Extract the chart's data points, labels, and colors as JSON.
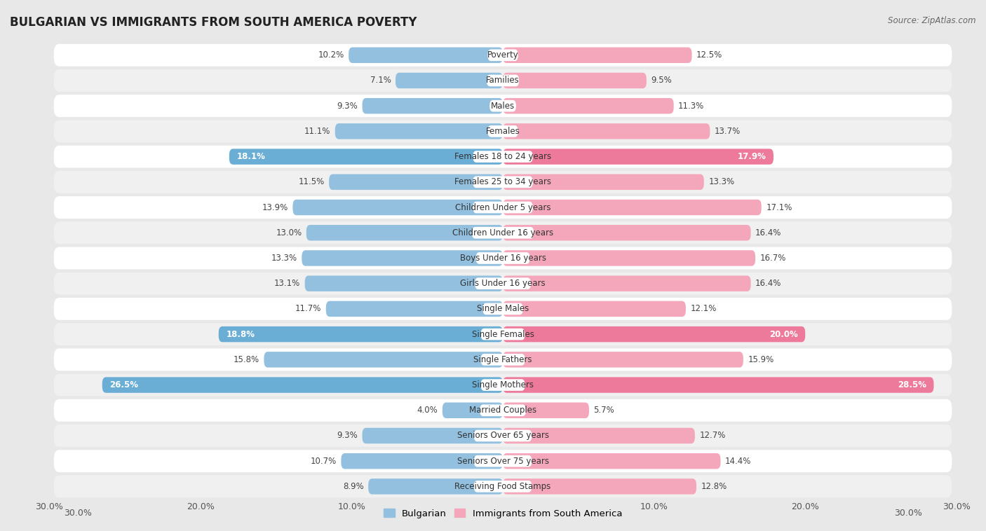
{
  "title": "BULGARIAN VS IMMIGRANTS FROM SOUTH AMERICA POVERTY",
  "source": "Source: ZipAtlas.com",
  "categories": [
    "Poverty",
    "Families",
    "Males",
    "Females",
    "Females 18 to 24 years",
    "Females 25 to 34 years",
    "Children Under 5 years",
    "Children Under 16 years",
    "Boys Under 16 years",
    "Girls Under 16 years",
    "Single Males",
    "Single Females",
    "Single Fathers",
    "Single Mothers",
    "Married Couples",
    "Seniors Over 65 years",
    "Seniors Over 75 years",
    "Receiving Food Stamps"
  ],
  "bulgarian_values": [
    10.2,
    7.1,
    9.3,
    11.1,
    18.1,
    11.5,
    13.9,
    13.0,
    13.3,
    13.1,
    11.7,
    18.8,
    15.8,
    26.5,
    4.0,
    9.3,
    10.7,
    8.9
  ],
  "immigrant_values": [
    12.5,
    9.5,
    11.3,
    13.7,
    17.9,
    13.3,
    17.1,
    16.4,
    16.7,
    16.4,
    12.1,
    20.0,
    15.9,
    28.5,
    5.7,
    12.7,
    14.4,
    12.8
  ],
  "bulgarian_color": "#92c0de",
  "bulgarian_highlight_color": "#6aadd5",
  "immigrant_color": "#f4a7bb",
  "immigrant_highlight_color": "#ee7a9b",
  "highlight_rows": [
    4,
    11,
    13
  ],
  "xlim": 30.0,
  "bar_height": 0.62,
  "row_bg_color": "#ffffff",
  "row_alt_bg_color": "#f0f0f0",
  "outer_bg_color": "#e8e8e8",
  "legend_bulgarian": "Bulgarian",
  "legend_immigrant": "Immigrants from South America"
}
